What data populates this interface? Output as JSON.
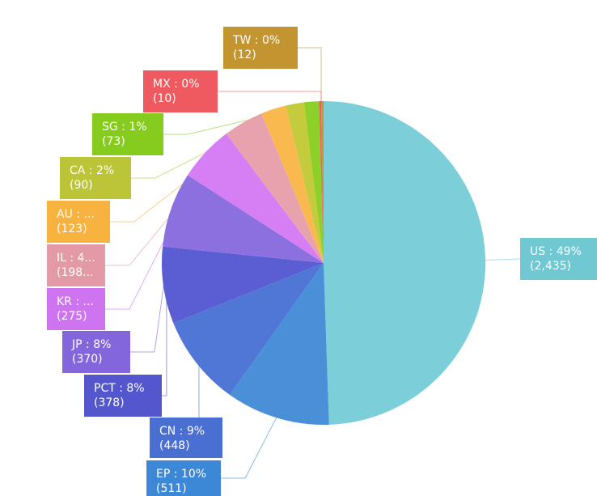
{
  "chart_data": {
    "type": "pie",
    "title": "",
    "slices": [
      {
        "key": "US",
        "line1": "US : 49%",
        "line2": "(2,435)",
        "value": 2435,
        "percent": 49,
        "color": "#7ccfd9",
        "label_color": "#70c8d3"
      },
      {
        "key": "EP",
        "line1": "EP : 10%",
        "line2": "(511)",
        "value": 511,
        "percent": 10,
        "color": "#4a90d9",
        "label_color": "#3d88d6"
      },
      {
        "key": "CN",
        "line1": "CN : 9%",
        "line2": "(448)",
        "value": 448,
        "percent": 9,
        "color": "#5076d6",
        "label_color": "#4a6fd2"
      },
      {
        "key": "PCT",
        "line1": "PCT : 8%",
        "line2": "(378)",
        "value": 378,
        "percent": 8,
        "color": "#5a5ed2",
        "label_color": "#5356cc"
      },
      {
        "key": "JP",
        "line1": "JP : 8%",
        "line2": "(370)",
        "value": 370,
        "percent": 8,
        "color": "#8c70e0",
        "label_color": "#8466dc"
      },
      {
        "key": "KR",
        "line1": "KR : ...",
        "line2": "(275)",
        "value": 275,
        "percent": 6,
        "color": "#d67ef3",
        "label_color": "#cf74f0"
      },
      {
        "key": "IL",
        "line1": "IL : 4...",
        "line2": "(198...",
        "value": 198,
        "percent": 4,
        "color": "#e8a2ad",
        "label_color": "#e49aa6"
      },
      {
        "key": "AU",
        "line1": "AU : ...",
        "line2": "(123)",
        "value": 123,
        "percent": 2,
        "color": "#f9b94f",
        "label_color": "#f7b23f"
      },
      {
        "key": "CA",
        "line1": "CA : 2%",
        "line2": "(90)",
        "value": 90,
        "percent": 2,
        "color": "#c4cc3d",
        "label_color": "#bcc437"
      },
      {
        "key": "SG",
        "line1": "SG : 1%",
        "line2": "(73)",
        "value": 73,
        "percent": 1,
        "color": "#8ed02a",
        "label_color": "#86cc1e"
      },
      {
        "key": "MX",
        "line1": "MX : 0%",
        "line2": "(10)",
        "value": 10,
        "percent": 0,
        "color": "#f06060",
        "label_color": "#ee5a5f"
      },
      {
        "key": "TW",
        "line1": "TW : 0%",
        "line2": "(12)",
        "value": 12,
        "percent": 0,
        "color": "#c2993a",
        "label_color": "#c29530"
      }
    ]
  }
}
